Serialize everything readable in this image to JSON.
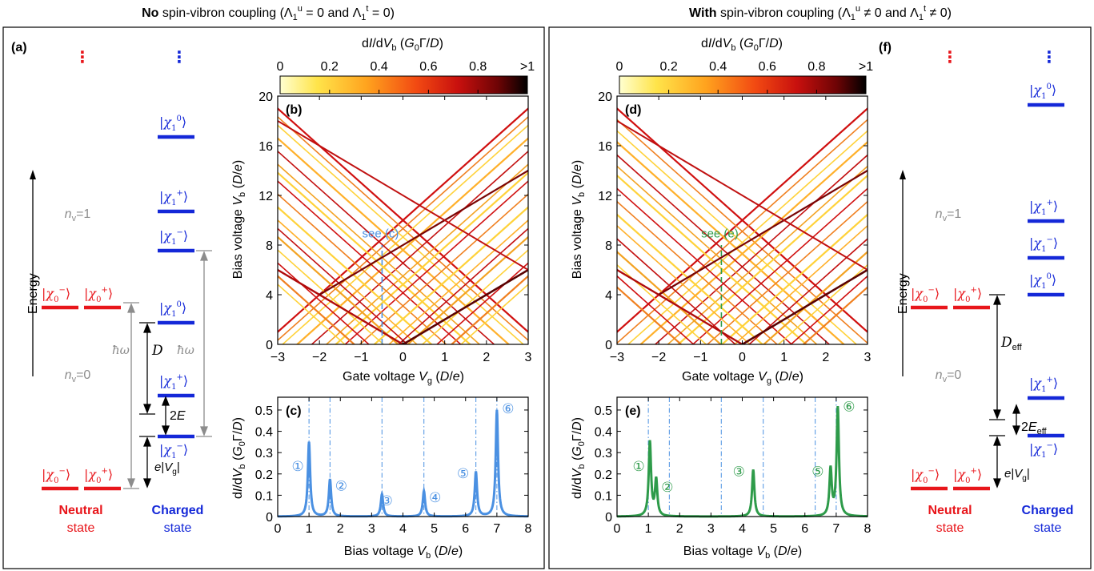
{
  "colors": {
    "neutral": "#e8161b",
    "charged": "#1428d8",
    "peak_c": "#4a90e2",
    "peak_e": "#2e9b4a",
    "gray": "#8c8c8c"
  },
  "headers": {
    "left": "No spin-vibron coupling (Λ1u = 0 and Λ1t = 0)",
    "right": "With spin-vibron coupling (Λ1u ≠ 0 and Λ1t ≠ 0)"
  },
  "panel_labels": {
    "a": "(a)",
    "b": "(b)",
    "c": "(c)",
    "d": "(d)",
    "e": "(e)",
    "f": "(f)"
  },
  "colorbar": {
    "title": "dI/dVb (G0Γ/D)",
    "ticks": [
      "0",
      "0.2",
      "0.4",
      "0.6",
      "0.8",
      ">1"
    ],
    "gradient": [
      "#ffffd0",
      "#ffe44a",
      "#ffa31e",
      "#f24a12",
      "#c8100e",
      "#6e0405",
      "#000000"
    ]
  },
  "level_diagram": {
    "energy_label": "Energy",
    "dots": "⋮",
    "neutral_caption": [
      "Neutral",
      "state"
    ],
    "charged_caption": [
      "Charged",
      "state"
    ],
    "nv0": "nv = 0",
    "nv1": "nv = 1",
    "hbar_omega": "ħω",
    "D": "D",
    "twoE": "2E",
    "D_eff": "Deff",
    "twoE_eff": "2Eeff",
    "eVg": "e|Vg|",
    "kets": {
      "chi0_minus": "|χ0−⟩",
      "chi0_plus": "|χ0+⟩",
      "chi1_minus": "|χ1−⟩",
      "chi1_plus": "|χ1+⟩",
      "chi1_zero": "|χ10⟩"
    }
  },
  "map_axes": {
    "xlabel": "Gate voltage Vg (D/e)",
    "ylabel": "Bias voltage Vb (D/e)",
    "xticks": [
      "−3",
      "−2",
      "−1",
      "0",
      "1",
      "2",
      "3"
    ],
    "yticks": [
      "0",
      "4",
      "8",
      "12",
      "16",
      "20"
    ],
    "see_c": "see (c)",
    "see_e": "see (e)"
  },
  "chart_data": [
    {
      "type": "heatmap",
      "panel": "b",
      "xlabel": "Gate voltage Vg (D/e)",
      "ylabel": "Bias voltage Vb (D/e)",
      "xlim": [
        -3,
        3
      ],
      "ylim": [
        0,
        20
      ],
      "colorbar_range": [
        0,
        1
      ],
      "cut_at_Vg": -0.5,
      "annotation": "see (c)"
    },
    {
      "type": "line",
      "panel": "c",
      "xlabel": "Bias voltage Vb (D/e)",
      "ylabel": "dI/dVb (G0Γ/D)",
      "xlim": [
        0,
        8
      ],
      "ylim": [
        0,
        0.5
      ],
      "xticks": [
        "0",
        "1",
        "2",
        "3",
        "4",
        "5",
        "6",
        "7",
        "8"
      ],
      "yticks": [
        "0",
        "0.1",
        "0.2",
        "0.3",
        "0.4",
        "0.5"
      ],
      "peaks": [
        {
          "label": "①",
          "x": 1.0,
          "y": 0.35
        },
        {
          "label": "②",
          "x": 1.67,
          "y": 0.175
        },
        {
          "label": "③",
          "x": 3.33,
          "y": 0.105
        },
        {
          "label": "④",
          "x": 4.67,
          "y": 0.12
        },
        {
          "label": "⑤",
          "x": 6.33,
          "y": 0.21
        },
        {
          "label": "⑥",
          "x": 7.0,
          "y": 0.5
        }
      ],
      "reference_lines_x": [
        1.0,
        1.67,
        3.33,
        4.67,
        6.33,
        7.0
      ]
    },
    {
      "type": "heatmap",
      "panel": "d",
      "xlabel": "Gate voltage Vg (D/e)",
      "ylabel": "Bias voltage Vb (D/e)",
      "xlim": [
        -3,
        3
      ],
      "ylim": [
        0,
        20
      ],
      "colorbar_range": [
        0,
        1
      ],
      "cut_at_Vg": -0.5,
      "annotation": "see (e)"
    },
    {
      "type": "line",
      "panel": "e",
      "xlabel": "Bias voltage Vb (D/e)",
      "ylabel": "dI/dVb (G0Γ/D)",
      "xlim": [
        0,
        8
      ],
      "ylim": [
        0,
        0.5
      ],
      "xticks": [
        "0",
        "1",
        "2",
        "3",
        "4",
        "5",
        "6",
        "7",
        "8"
      ],
      "yticks": [
        "0",
        "0.1",
        "0.2",
        "0.3",
        "0.4",
        "0.5"
      ],
      "peaks": [
        {
          "label": "①",
          "x": 1.05,
          "y": 0.35
        },
        {
          "label": "②",
          "x": 1.25,
          "y": 0.17
        },
        {
          "label": "③",
          "x": 4.35,
          "y": 0.22
        },
        {
          "label": "⑤",
          "x": 6.82,
          "y": 0.22
        },
        {
          "label": "⑥",
          "x": 7.05,
          "y": 0.51
        }
      ],
      "reference_lines_x": [
        1.0,
        1.67,
        3.33,
        4.67,
        6.33,
        7.0
      ]
    }
  ]
}
